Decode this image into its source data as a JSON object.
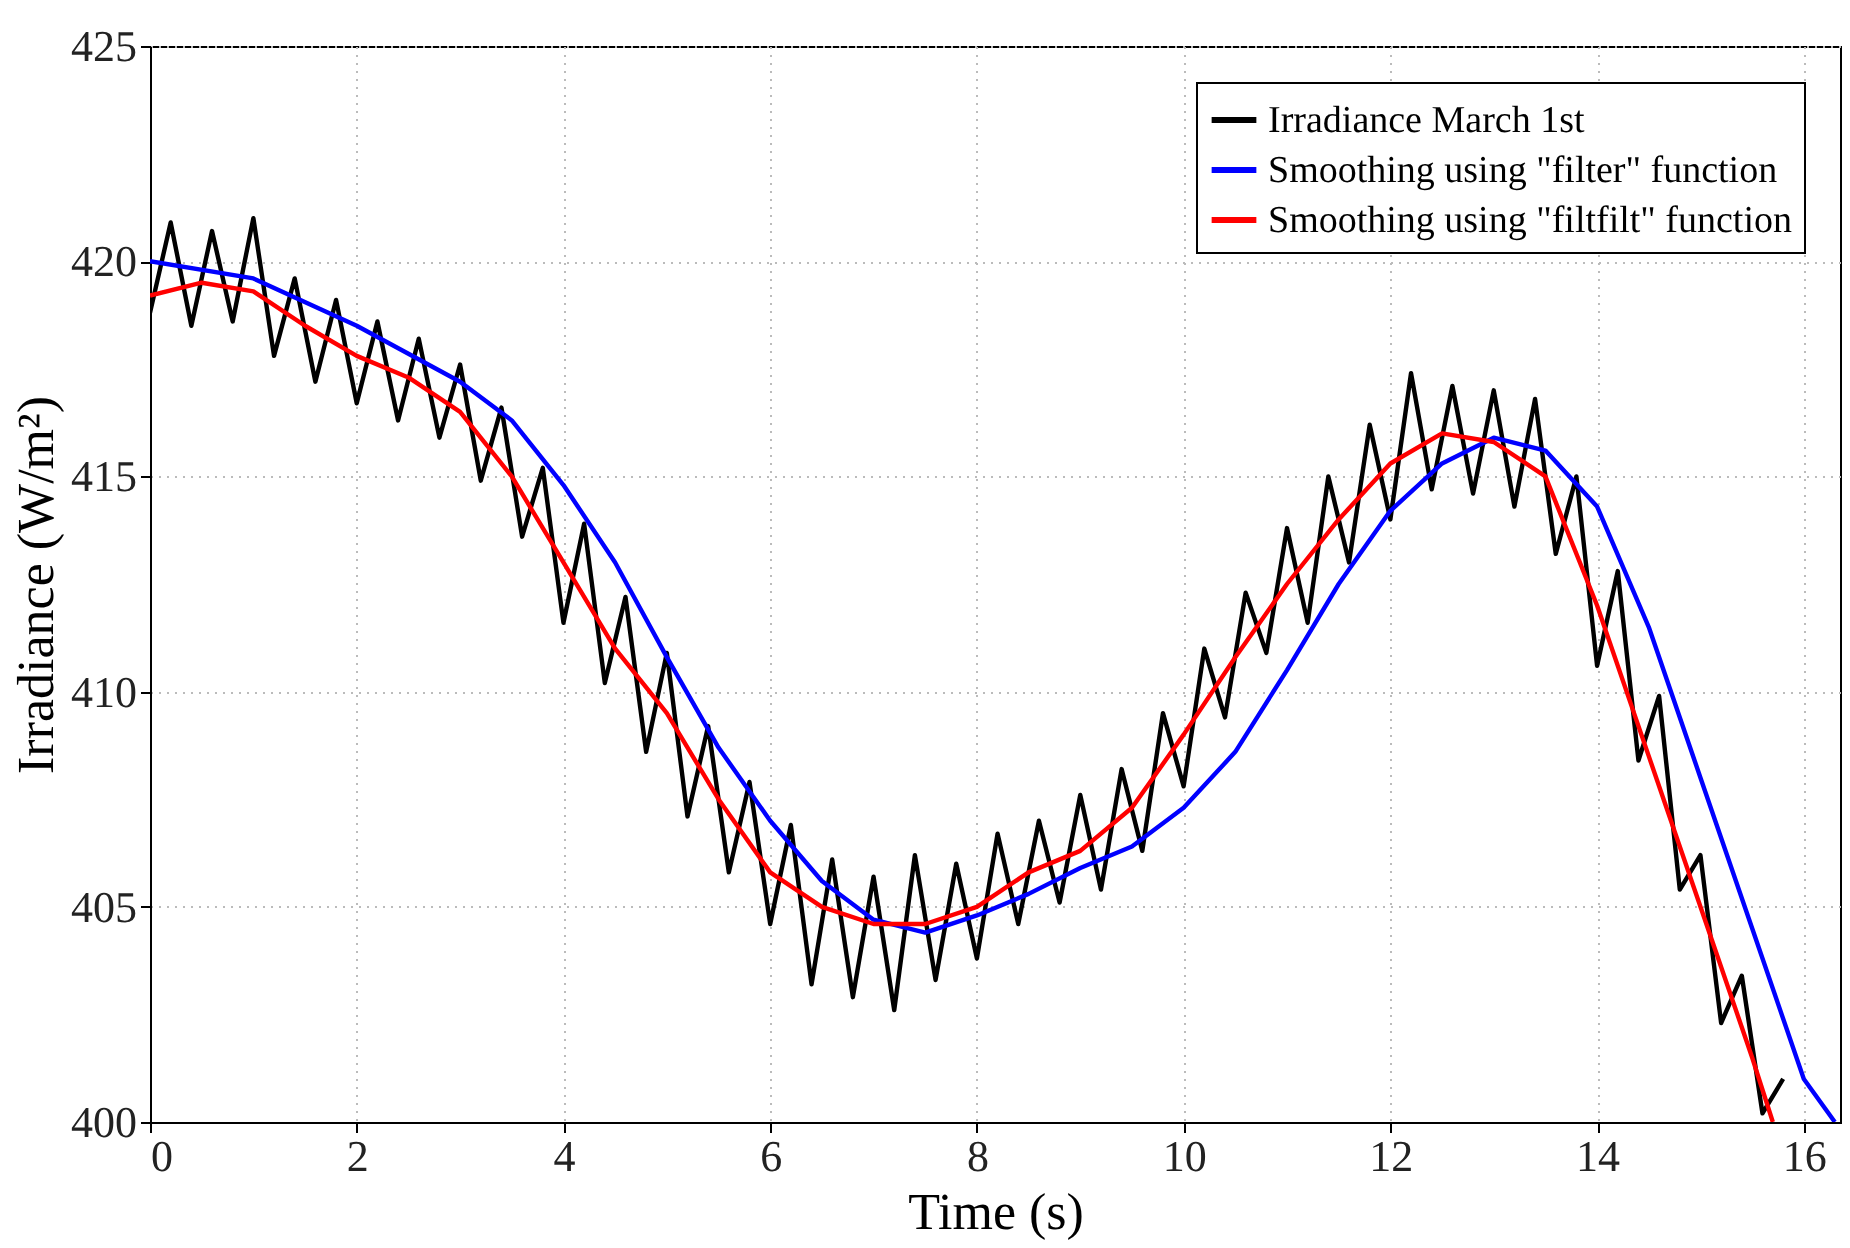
{
  "chart_data": {
    "type": "line",
    "xlabel": "Time (s)",
    "ylabel": "Irradiance (W/m²)",
    "xlim": [
      0,
      16.35
    ],
    "xticks": [
      0,
      2,
      4,
      6,
      8,
      10,
      12,
      14,
      16
    ],
    "ylim": [
      400,
      425
    ],
    "yticks": [
      400,
      405,
      410,
      415,
      420,
      425
    ],
    "grid": true,
    "legend": "top right",
    "line_style": "solid",
    "series": [
      {
        "name": "Irradiance March 1st",
        "color": "#000000",
        "x": [
          0.0,
          0.2,
          0.4,
          0.6,
          0.8,
          1.0,
          1.2,
          1.4,
          1.6,
          1.8,
          2.0,
          2.2,
          2.4,
          2.6,
          2.8,
          3.0,
          3.2,
          3.4,
          3.6,
          3.8,
          4.0,
          4.2,
          4.4,
          4.6,
          4.8,
          5.0,
          5.2,
          5.4,
          5.6,
          5.8,
          6.0,
          6.2,
          6.4,
          6.6,
          6.8,
          7.0,
          7.2,
          7.4,
          7.6,
          7.8,
          8.0,
          8.2,
          8.4,
          8.6,
          8.8,
          9.0,
          9.2,
          9.4,
          9.6,
          9.8,
          10.0,
          10.2,
          10.4,
          10.6,
          10.8,
          11.0,
          11.2,
          11.4,
          11.6,
          11.8,
          12.0,
          12.2,
          12.4,
          12.6,
          12.8,
          13.0,
          13.2,
          13.4,
          13.6,
          13.8,
          14.0,
          14.2,
          14.4,
          14.6,
          14.8,
          15.0,
          15.2,
          15.4,
          15.6,
          15.8
        ],
        "values": [
          418.8,
          420.9,
          418.5,
          420.7,
          418.6,
          421.0,
          417.8,
          419.6,
          417.2,
          419.1,
          416.7,
          418.6,
          416.3,
          418.2,
          415.9,
          417.6,
          414.9,
          416.6,
          413.6,
          415.2,
          411.6,
          413.9,
          410.2,
          412.2,
          408.6,
          410.9,
          407.1,
          409.2,
          405.8,
          407.9,
          404.6,
          406.9,
          403.2,
          406.1,
          402.9,
          405.7,
          402.6,
          406.2,
          403.3,
          406.0,
          403.8,
          406.7,
          404.6,
          407.0,
          405.1,
          407.6,
          405.4,
          408.2,
          406.3,
          409.5,
          407.8,
          411.0,
          409.4,
          412.3,
          410.9,
          413.8,
          411.6,
          415.0,
          413.0,
          416.2,
          414.0,
          417.4,
          414.7,
          417.1,
          414.6,
          417.0,
          414.3,
          416.8,
          413.2,
          415.0,
          410.6,
          412.8,
          408.4,
          409.9,
          405.4,
          406.2,
          402.3,
          403.4,
          400.2,
          401.0
        ]
      },
      {
        "name": "Smoothing using \"filter\" function",
        "color": "#0000ff",
        "x": [
          0,
          1,
          2,
          3,
          3.5,
          4,
          4.5,
          5,
          5.5,
          6,
          6.5,
          7,
          7.5,
          8,
          8.5,
          9,
          9.5,
          10,
          10.5,
          11,
          11.5,
          12,
          12.5,
          13,
          13.5,
          14,
          14.5,
          15,
          15.5,
          16,
          16.3
        ],
        "values": [
          420,
          419.6,
          418.5,
          417.2,
          416.3,
          414.8,
          413,
          410.8,
          408.7,
          407,
          405.6,
          404.7,
          404.4,
          404.8,
          405.3,
          405.9,
          406.4,
          407.3,
          408.6,
          410.5,
          412.5,
          414.2,
          415.3,
          415.9,
          415.6,
          414.3,
          411.5,
          408,
          404.5,
          401,
          400
        ]
      },
      {
        "name": "Smoothing using \"filtfilt\" function",
        "color": "#ff0000",
        "x": [
          0,
          0.5,
          1,
          1.5,
          2,
          2.5,
          3,
          3.5,
          4,
          4.5,
          5,
          5.5,
          6,
          6.5,
          7,
          7.5,
          8,
          8.5,
          9,
          9.5,
          10,
          10.5,
          11,
          11.5,
          12,
          12.5,
          13,
          13.5,
          14,
          14.5,
          15,
          15.5,
          15.7
        ],
        "values": [
          419.2,
          419.5,
          419.3,
          418.5,
          417.8,
          417.3,
          416.5,
          415,
          413,
          411,
          409.5,
          407.5,
          405.8,
          405,
          404.6,
          404.6,
          405,
          405.8,
          406.3,
          407.3,
          409,
          410.8,
          412.5,
          414,
          415.3,
          416,
          415.8,
          415,
          412,
          408.5,
          405,
          401.5,
          400
        ]
      }
    ]
  }
}
